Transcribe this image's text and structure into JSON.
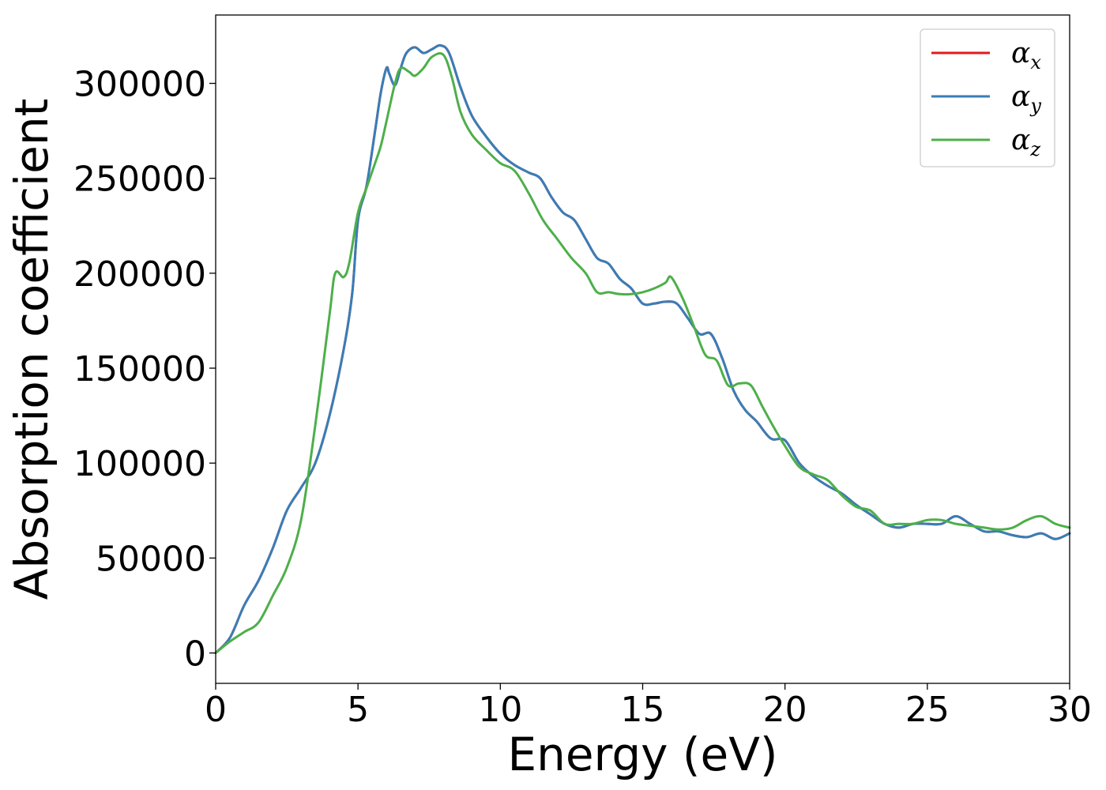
{
  "chart_data": {
    "type": "line",
    "title": "",
    "xlabel": "Energy (eV)",
    "ylabel": "Absorption coefficient",
    "xlim": [
      0,
      30
    ],
    "ylim": [
      -16000,
      336000
    ],
    "xticks": [
      0,
      5,
      10,
      15,
      20,
      25,
      30
    ],
    "xtick_labels": [
      "0",
      "5",
      "10",
      "15",
      "20",
      "25",
      "30"
    ],
    "yticks": [
      0,
      50000,
      100000,
      150000,
      200000,
      250000,
      300000
    ],
    "ytick_labels": [
      "0",
      "50000",
      "100000",
      "150000",
      "200000",
      "250000",
      "300000"
    ],
    "grid": false,
    "legend_position": "top-right",
    "series": [
      {
        "name": "αx",
        "symbol": "α",
        "subscript": "x",
        "color": "#e41a1c",
        "x": [
          0,
          0.5,
          1,
          1.5,
          2,
          2.5,
          3,
          3.5,
          4,
          4.5,
          4.8,
          5,
          5.3,
          5.6,
          5.8,
          6,
          6.1,
          6.3,
          6.5,
          6.7,
          7,
          7.3,
          7.6,
          7.9,
          8.2,
          8.6,
          9,
          9.5,
          10,
          10.5,
          11,
          11.4,
          11.8,
          12.2,
          12.6,
          13,
          13.4,
          13.8,
          14.2,
          14.6,
          15,
          15.4,
          15.8,
          16.2,
          16.6,
          17,
          17.4,
          17.8,
          18.2,
          18.6,
          19,
          19.5,
          20,
          20.5,
          21,
          21.5,
          22,
          22.5,
          23,
          23.5,
          24,
          24.5,
          25,
          25.5,
          26,
          26.5,
          27,
          27.5,
          28,
          28.5,
          29,
          29.5,
          30
        ],
        "y": [
          0,
          8000,
          25000,
          38000,
          55000,
          75000,
          87000,
          100000,
          125000,
          160000,
          190000,
          228000,
          246000,
          275000,
          295000,
          308000,
          305000,
          299000,
          308000,
          316000,
          319000,
          316000,
          318000,
          320000,
          316000,
          298000,
          283000,
          272000,
          263000,
          257000,
          253000,
          250000,
          240000,
          232000,
          228000,
          218000,
          208000,
          205000,
          197000,
          192000,
          184000,
          184000,
          185000,
          184000,
          176000,
          168000,
          168000,
          155000,
          138000,
          128000,
          122000,
          113000,
          112000,
          100000,
          93000,
          88000,
          84000,
          78000,
          73000,
          68000,
          66000,
          68000,
          68000,
          68000,
          72000,
          68000,
          64000,
          64000,
          62000,
          61000,
          63000,
          60000,
          63000
        ]
      },
      {
        "name": "αy",
        "symbol": "α",
        "subscript": "y",
        "color": "#377eb8",
        "x": [
          0,
          0.5,
          1,
          1.5,
          2,
          2.5,
          3,
          3.5,
          4,
          4.5,
          4.8,
          5,
          5.3,
          5.6,
          5.8,
          6,
          6.1,
          6.3,
          6.5,
          6.7,
          7,
          7.3,
          7.6,
          7.9,
          8.2,
          8.6,
          9,
          9.5,
          10,
          10.5,
          11,
          11.4,
          11.8,
          12.2,
          12.6,
          13,
          13.4,
          13.8,
          14.2,
          14.6,
          15,
          15.4,
          15.8,
          16.2,
          16.6,
          17,
          17.4,
          17.8,
          18.2,
          18.6,
          19,
          19.5,
          20,
          20.5,
          21,
          21.5,
          22,
          22.5,
          23,
          23.5,
          24,
          24.5,
          25,
          25.5,
          26,
          26.5,
          27,
          27.5,
          28,
          28.5,
          29,
          29.5,
          30
        ],
        "y": [
          0,
          8000,
          25000,
          38000,
          55000,
          75000,
          87000,
          100000,
          125000,
          160000,
          190000,
          228000,
          246000,
          275000,
          295000,
          308000,
          305000,
          299000,
          308000,
          316000,
          319000,
          316000,
          318000,
          320000,
          316000,
          298000,
          283000,
          272000,
          263000,
          257000,
          253000,
          250000,
          240000,
          232000,
          228000,
          218000,
          208000,
          205000,
          197000,
          192000,
          184000,
          184000,
          185000,
          184000,
          176000,
          168000,
          168000,
          155000,
          138000,
          128000,
          122000,
          113000,
          112000,
          100000,
          93000,
          88000,
          84000,
          78000,
          73000,
          68000,
          66000,
          68000,
          68000,
          68000,
          72000,
          68000,
          64000,
          64000,
          62000,
          61000,
          63000,
          60000,
          63000
        ]
      },
      {
        "name": "αz",
        "symbol": "α",
        "subscript": "z",
        "color": "#4daf4a",
        "x": [
          0,
          0.5,
          1,
          1.5,
          2,
          2.5,
          3,
          3.5,
          4,
          4.2,
          4.5,
          4.7,
          5,
          5.3,
          5.6,
          5.8,
          6,
          6.3,
          6.5,
          6.8,
          7,
          7.3,
          7.6,
          8,
          8.3,
          8.6,
          9,
          9.5,
          10,
          10.5,
          11,
          11.5,
          12,
          12.5,
          13,
          13.4,
          13.8,
          14.2,
          14.6,
          15,
          15.4,
          15.8,
          16,
          16.4,
          16.8,
          17.2,
          17.6,
          18,
          18.4,
          18.8,
          19.2,
          19.6,
          20,
          20.5,
          21,
          21.5,
          22,
          22.5,
          23,
          23.5,
          24,
          24.5,
          25,
          25.5,
          26,
          26.5,
          27,
          27.5,
          28,
          28.5,
          29,
          29.5,
          30
        ],
        "y": [
          0,
          6000,
          11000,
          16000,
          30000,
          45000,
          70000,
          120000,
          178000,
          200000,
          198000,
          206000,
          232000,
          245000,
          258000,
          267000,
          280000,
          300000,
          308000,
          306000,
          304000,
          308000,
          314000,
          315000,
          303000,
          285000,
          273000,
          265000,
          258000,
          254000,
          242000,
          228000,
          218000,
          208000,
          200000,
          190000,
          190000,
          189000,
          189000,
          190000,
          192000,
          195000,
          198000,
          187000,
          172000,
          157000,
          154000,
          141000,
          142000,
          141000,
          130000,
          119000,
          109000,
          98000,
          94000,
          91000,
          83000,
          77000,
          75000,
          68000,
          68000,
          68000,
          70000,
          70000,
          68000,
          67000,
          66000,
          65000,
          66000,
          70000,
          72000,
          68000,
          66000
        ]
      }
    ]
  }
}
